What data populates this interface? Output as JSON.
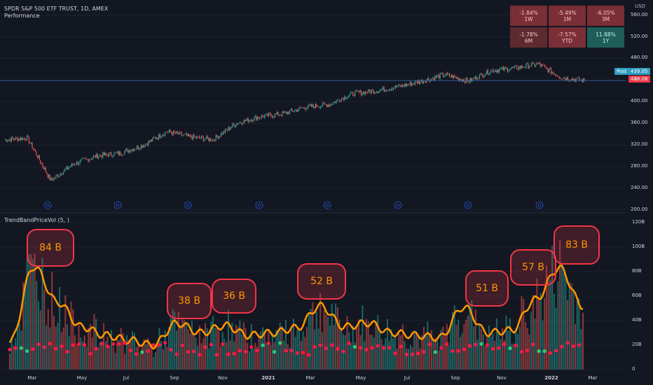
{
  "header": {
    "title": "SPDR S&P 500 ETF TRUST, 1D, AMEX",
    "subtitle": "Performance",
    "indicator": "TrendBandPriceVol (5, )",
    "currency": "USD"
  },
  "performance": [
    {
      "value": "-1.84%",
      "period": "1W",
      "color": "#7a2e35"
    },
    {
      "value": "-5.49%",
      "period": "1M",
      "color": "#7a2e35"
    },
    {
      "value": "-6.05%",
      "period": "3M",
      "color": "#7a2e35"
    },
    {
      "value": "-1.78%",
      "period": "6M",
      "color": "#5e2a31"
    },
    {
      "value": "-7.57%",
      "period": "YTD",
      "color": "#7a2e35"
    },
    {
      "value": "11.88%",
      "period": "1Y",
      "color": "#1f5e58"
    }
  ],
  "price_tags": {
    "post_label": "Post",
    "post_value": "439.05",
    "last_value": "439.02"
  },
  "price_axis": [
    "560.00",
    "520.00",
    "480.00",
    "440.00",
    "400.00",
    "360.00",
    "320.00",
    "280.00",
    "240.00",
    "200.00"
  ],
  "volume_axis": [
    "120B",
    "100B",
    "80B",
    "60B",
    "40B",
    "20B",
    "0"
  ],
  "x_axis": [
    "Mar",
    "May",
    "Jul",
    "Sep",
    "Nov",
    "2021",
    "Mar",
    "May",
    "Jul",
    "Sep",
    "Nov",
    "2022",
    "Mar"
  ],
  "colors": {
    "up": "#26a69a",
    "down": "#ef5350",
    "line": "#ff9800",
    "callout": "#f23645",
    "bg": "#131722"
  },
  "chart_data": [
    {
      "type": "line",
      "title": "SPDR S&P 500 ETF TRUST, 1D, AMEX",
      "series": [
        {
          "name": "Close",
          "x": [
            "2020-01",
            "2020-02",
            "2020-03",
            "2020-04",
            "2020-05",
            "2020-06",
            "2020-07",
            "2020-08",
            "2020-09",
            "2020-10",
            "2020-11",
            "2020-12",
            "2021-01",
            "2021-02",
            "2021-03",
            "2021-04",
            "2021-05",
            "2021-06",
            "2021-07",
            "2021-08",
            "2021-09",
            "2021-10",
            "2021-11",
            "2021-12",
            "2022-01",
            "2022-02"
          ],
          "values": [
            330,
            333,
            255,
            285,
            300,
            305,
            320,
            345,
            335,
            330,
            360,
            372,
            378,
            390,
            395,
            415,
            420,
            428,
            438,
            450,
            438,
            458,
            462,
            470,
            445,
            439
          ]
        }
      ],
      "ylim": [
        200,
        575
      ],
      "last_price": 439.02
    },
    {
      "type": "bar",
      "title": "TrendBandPriceVol (5, )",
      "ylim": [
        0,
        120
      ],
      "unit": "B",
      "series": [
        {
          "name": "Volume trend",
          "x": [
            "2020-02",
            "2020-03",
            "2020-04",
            "2020-05",
            "2020-06",
            "2020-07",
            "2020-08",
            "2020-09",
            "2020-10",
            "2020-11",
            "2020-12",
            "2021-01",
            "2021-02",
            "2021-03",
            "2021-04",
            "2021-05",
            "2021-06",
            "2021-07",
            "2021-08",
            "2021-09",
            "2021-10",
            "2021-11",
            "2021-12",
            "2022-01",
            "2022-02"
          ],
          "values": [
            22,
            84,
            55,
            35,
            28,
            24,
            20,
            38,
            30,
            36,
            28,
            30,
            34,
            52,
            35,
            38,
            30,
            28,
            26,
            51,
            30,
            32,
            57,
            83,
            52
          ]
        }
      ],
      "annotations": [
        "84 B",
        "38 B",
        "36 B",
        "52 B",
        "51 B",
        "57 B",
        "83 B"
      ]
    }
  ]
}
